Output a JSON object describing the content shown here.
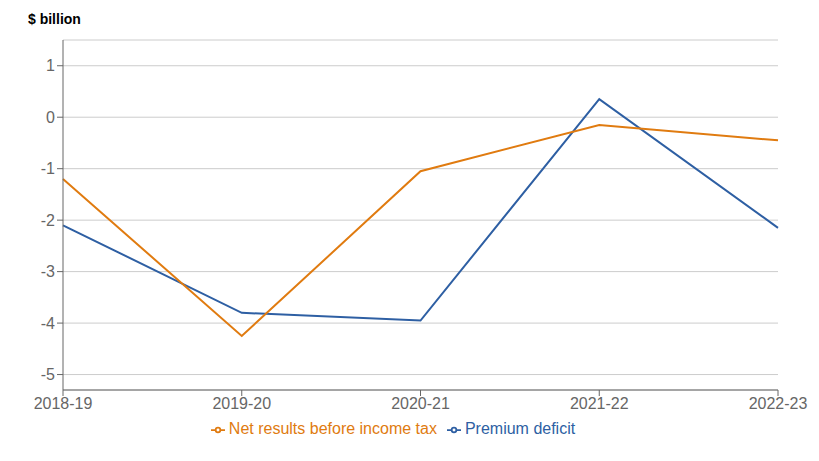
{
  "chart_data": {
    "type": "line",
    "ylabel": "$ billion",
    "categories": [
      "2018-19",
      "2019-20",
      "2020-21",
      "2021-22",
      "2022-23"
    ],
    "series": [
      {
        "name": "Premium deficit",
        "color": "#2E5FA3",
        "values": [
          -2.1,
          -3.8,
          -3.95,
          0.35,
          -2.15
        ]
      },
      {
        "name": "Net results before income tax",
        "color": "#E07B10",
        "values": [
          -1.2,
          -4.25,
          -1.05,
          -0.15,
          -0.45
        ]
      }
    ],
    "ylim": [
      -5.3,
      1.5
    ],
    "yticks": [
      -5,
      -4,
      -3,
      -2,
      -1,
      0,
      1
    ],
    "grid": true,
    "legend": "bottom"
  }
}
